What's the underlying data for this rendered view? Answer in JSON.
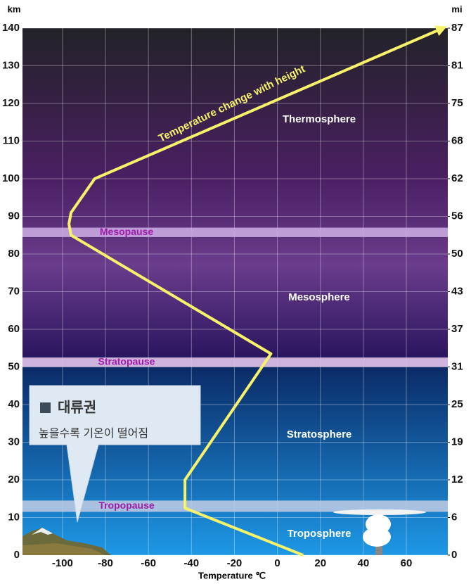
{
  "chart_data": {
    "type": "line",
    "x_label": "Temperature ℃",
    "y_label": "km",
    "y2_label": "mi",
    "xlim": [
      -118.6,
      79.3
    ],
    "xticks": [
      -100,
      -80,
      -60,
      -40,
      -20,
      0,
      20,
      40,
      60
    ],
    "ylim": [
      0,
      140
    ],
    "yticks": [
      0,
      10,
      20,
      30,
      40,
      50,
      60,
      70,
      80,
      90,
      100,
      110,
      120,
      130,
      140
    ],
    "y2lim": [
      0,
      86.99
    ],
    "y2ticks": [
      0,
      {
        "value": 6.21,
        "label": "6"
      },
      {
        "value": 12.43,
        "label": "12"
      },
      {
        "value": 18.64,
        "label": "19"
      },
      {
        "value": 24.85,
        "label": "25"
      },
      {
        "value": 31.07,
        "label": "31"
      },
      {
        "value": 37.28,
        "label": "37"
      },
      {
        "value": 43.49,
        "label": "43"
      },
      {
        "value": 49.71,
        "label": "50"
      },
      {
        "value": 55.92,
        "label": "56"
      },
      {
        "value": 62.14,
        "label": "62"
      },
      {
        "value": 68.35,
        "label": "68"
      },
      {
        "value": 74.56,
        "label": "75"
      },
      {
        "value": 80.78,
        "label": "81"
      },
      {
        "value": 86.99,
        "label": "87"
      }
    ],
    "grid": true,
    "series": [
      {
        "name": "Temperature change with height",
        "color": "#f7f26a",
        "x": [
          12,
          -43,
          -43,
          -3,
          -96,
          -97,
          -96,
          -85,
          77
        ],
        "values": [
          0,
          12.5,
          20,
          53.5,
          85,
          88,
          91,
          100,
          140
        ]
      }
    ],
    "layers": [
      {
        "name": "Mesopause",
        "range": [
          84.5,
          87
        ],
        "color": "#c9a9e2"
      },
      {
        "name": "Stratopause",
        "range": [
          50,
          52.5
        ],
        "color": "#e2c3ea"
      },
      {
        "name": "Tropopause",
        "range": [
          11.5,
          14.5
        ],
        "color": "#b9c9e2"
      }
    ],
    "annotations": [
      "Thermosphere",
      "Mesosphere",
      "Stratosphere",
      "Troposphere"
    ],
    "callout": {
      "title": "대류권",
      "text": "높을수록 기온이 떨어짐"
    }
  }
}
